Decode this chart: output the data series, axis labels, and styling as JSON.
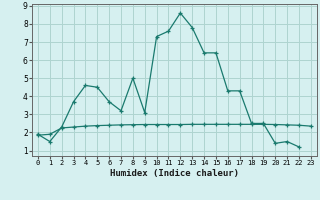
{
  "xlabel": "Humidex (Indice chaleur)",
  "background_color": "#d6f0f0",
  "grid_color": "#aed4d0",
  "line_color": "#1a7a6e",
  "xlim": [
    -0.5,
    23.5
  ],
  "ylim": [
    0.7,
    9.1
  ],
  "xticks": [
    0,
    1,
    2,
    3,
    4,
    5,
    6,
    7,
    8,
    9,
    10,
    11,
    12,
    13,
    14,
    15,
    16,
    17,
    18,
    19,
    20,
    21,
    22,
    23
  ],
  "yticks": [
    1,
    2,
    3,
    4,
    5,
    6,
    7,
    8,
    9
  ],
  "series1_x": [
    0,
    1,
    2,
    3,
    4,
    5,
    6,
    7,
    8,
    9,
    10,
    11,
    12,
    13,
    14,
    15,
    16,
    17,
    18,
    19,
    20,
    21,
    22
  ],
  "series1_y": [
    1.9,
    1.5,
    2.3,
    3.7,
    4.6,
    4.5,
    3.7,
    3.2,
    5.0,
    3.1,
    7.3,
    7.6,
    8.6,
    7.8,
    6.4,
    6.4,
    4.3,
    4.3,
    2.5,
    2.5,
    1.4,
    1.5,
    1.2
  ],
  "series2_x": [
    0,
    1,
    2,
    3,
    4,
    5,
    6,
    7,
    8,
    9,
    10,
    11,
    12,
    13,
    14,
    15,
    16,
    17,
    18,
    19,
    20,
    21,
    22,
    23
  ],
  "series2_y": [
    1.85,
    1.9,
    2.25,
    2.3,
    2.35,
    2.38,
    2.4,
    2.42,
    2.43,
    2.44,
    2.44,
    2.44,
    2.44,
    2.45,
    2.45,
    2.45,
    2.45,
    2.45,
    2.45,
    2.45,
    2.44,
    2.42,
    2.4,
    2.35
  ]
}
